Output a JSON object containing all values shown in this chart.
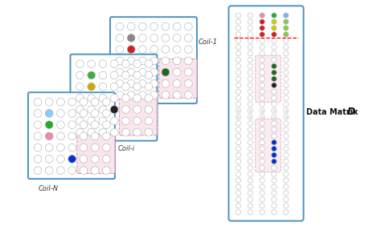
{
  "bg_color": "#ffffff",
  "coil_border_color": "#4a90c4",
  "pink_region_color": "#f8e0e8",
  "pink_border_color": "#cc7799",
  "red_dashed_color": "#ff0000",
  "coil_labels": [
    "Coil-1",
    "Coil-i",
    "Coil-N"
  ],
  "data_matrix_label": "Data Matrix  ",
  "data_matrix_D": "D",
  "coil1_colored_dots": [
    {
      "row": 1,
      "col": 1,
      "color": "#888888"
    },
    {
      "row": 2,
      "col": 1,
      "color": "#cc2222"
    },
    {
      "row": 4,
      "col": 4,
      "color": "#226622"
    }
  ],
  "coili_colored_dots": [
    {
      "row": 1,
      "col": 1,
      "color": "#44aa44"
    },
    {
      "row": 2,
      "col": 1,
      "color": "#ccaa00"
    },
    {
      "row": 4,
      "col": 3,
      "color": "#222222"
    }
  ],
  "coiln_colored_dots": [
    {
      "row": 1,
      "col": 1,
      "color": "#88ccff"
    },
    {
      "row": 2,
      "col": 1,
      "color": "#22aa22"
    },
    {
      "row": 3,
      "col": 1,
      "color": "#ee88aa"
    },
    {
      "row": 5,
      "col": 3,
      "color": "#0033cc"
    }
  ],
  "dm_colored": {
    "0,2": "#ee88bb",
    "0,3": "#22aa44",
    "0,4": "#88aaff",
    "1,2": "#cc2222",
    "1,3": "#cccc00",
    "1,4": "#88cc44",
    "2,2": "#cc2222",
    "2,3": "#cccc00",
    "2,4": "#88cc44",
    "3,2": "#cc2222",
    "3,3": "#cc2222",
    "3,4": "#88cc44",
    "8,3": "#226622",
    "9,3": "#226622",
    "10,3": "#226622",
    "11,3": "#222222",
    "20,3": "#0033cc",
    "21,3": "#0033cc",
    "22,3": "#0033cc",
    "23,3": "#0033cc"
  }
}
